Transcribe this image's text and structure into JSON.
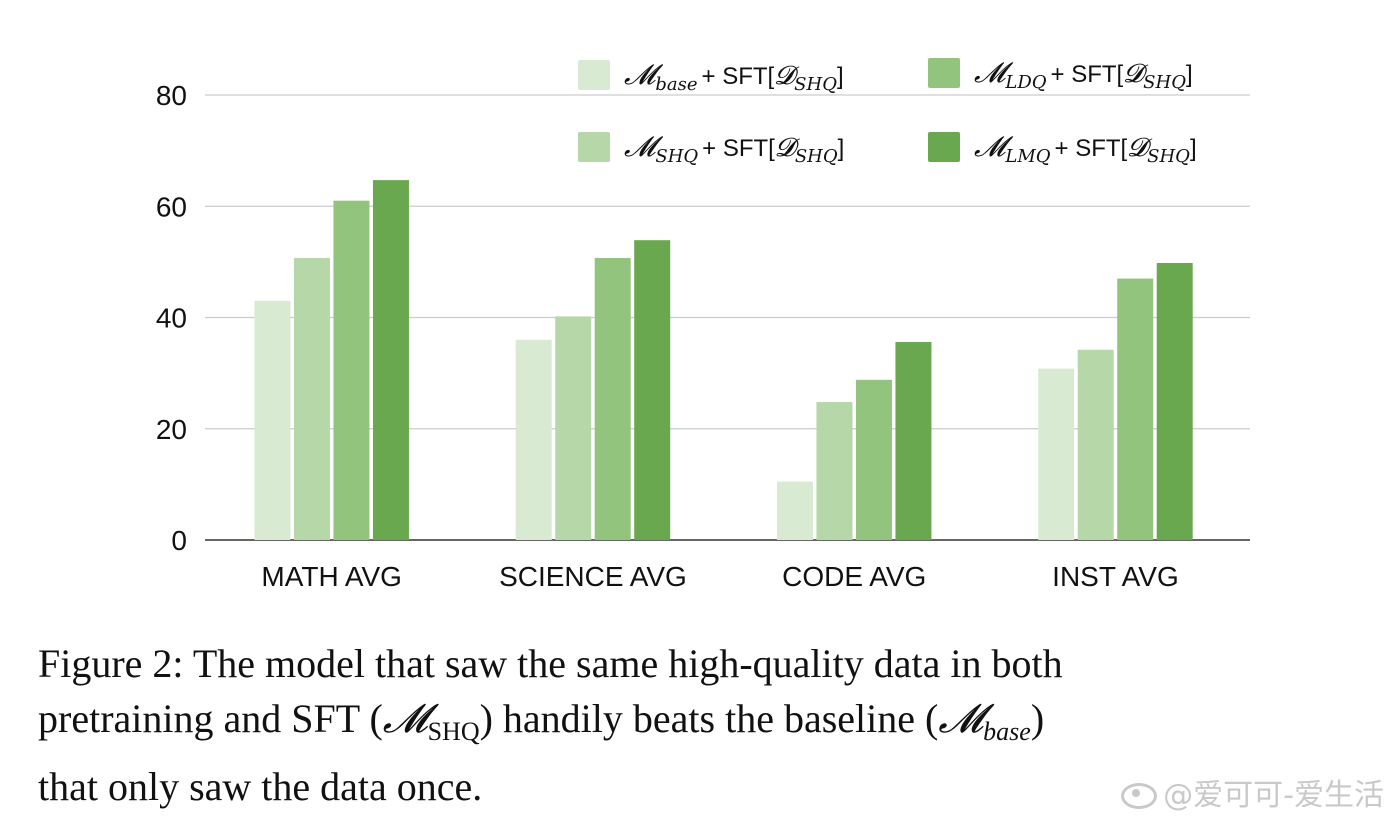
{
  "chart_data": {
    "type": "bar",
    "categories": [
      "MATH AVG",
      "SCIENCE AVG",
      "CODE AVG",
      "INST AVG"
    ],
    "series": [
      {
        "name": "M_base + SFT[D_SHQ]",
        "model": "𝓜",
        "model_sub": "base",
        "sft": "+ SFT[",
        "data": "𝓓",
        "data_sub": "SHQ",
        "close": "]",
        "color": "#d9ead3",
        "values": [
          43,
          36,
          10.5,
          30.8
        ]
      },
      {
        "name": "M_SHQ + SFT[D_SHQ]",
        "model": "𝓜",
        "model_sub": "SHQ",
        "sft": "+ SFT[",
        "data": "𝓓",
        "data_sub": "SHQ",
        "close": "]",
        "color": "#b6d7a8",
        "values": [
          50.7,
          40.2,
          24.8,
          34.2
        ]
      },
      {
        "name": "M_LDQ + SFT[D_SHQ]",
        "model": "𝓜",
        "model_sub": "LDQ",
        "sft": "+ SFT[",
        "data": "𝓓",
        "data_sub": "SHQ",
        "close": "]",
        "color": "#93c47d",
        "values": [
          61,
          50.7,
          28.8,
          47
        ]
      },
      {
        "name": "M_LMQ + SFT[D_SHQ]",
        "model": "𝓜",
        "model_sub": "LMQ",
        "sft": "+ SFT[",
        "data": "𝓓",
        "data_sub": "SHQ",
        "close": "]",
        "color": "#6aa84f",
        "values": [
          64.7,
          53.9,
          35.6,
          49.8
        ]
      }
    ],
    "yticks": [
      0,
      20,
      40,
      60,
      80
    ],
    "ylim": [
      0,
      80
    ],
    "grid": true,
    "legend_position": "top-right"
  },
  "caption": {
    "line1": "Figure 2: The model that saw the same high-quality data in both",
    "line2_a": "pretraining and SFT (",
    "m1": "𝓜",
    "m1_sub": "SHQ",
    "line2_b": ") handily beats the baseline (",
    "m2": "𝓜",
    "m2_sub": "base",
    "line2_c": ")",
    "line3": "that only saw the data once."
  },
  "watermark": {
    "text": "@爱可可-爱生活",
    "icon": "weibo-icon"
  }
}
